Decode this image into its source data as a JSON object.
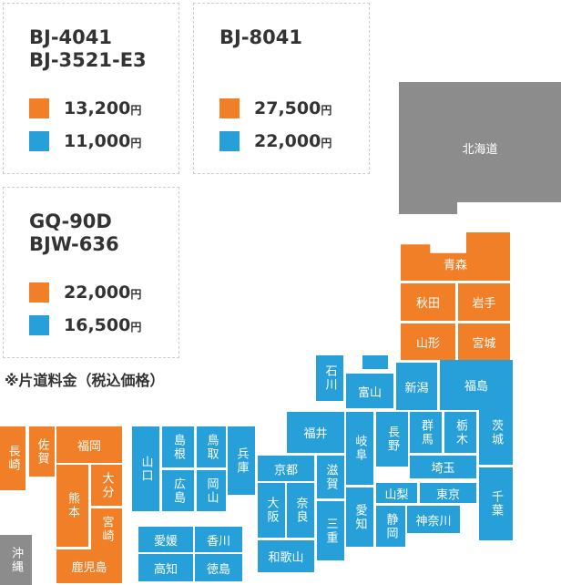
{
  "fare_boxes": [
    {
      "models": [
        "BJ-4041",
        "BJ-3521-E3"
      ],
      "rows": [
        {
          "color": "#f07f28",
          "amount": "13,200",
          "unit": "円"
        },
        {
          "color": "#27a0d9",
          "amount": "11,000",
          "unit": "円"
        }
      ]
    },
    {
      "models": [
        "BJ-8041"
      ],
      "rows": [
        {
          "color": "#f07f28",
          "amount": "27,500",
          "unit": "円"
        },
        {
          "color": "#27a0d9",
          "amount": "22,000",
          "unit": "円"
        }
      ]
    },
    {
      "models": [
        "GQ-90D",
        "BJW-636"
      ],
      "rows": [
        {
          "color": "#f07f28",
          "amount": "22,000",
          "unit": "円"
        },
        {
          "color": "#27a0d9",
          "amount": "16,500",
          "unit": "円"
        }
      ]
    }
  ],
  "note": "※片道料金（税込価格）",
  "prefectures": [
    {
      "label": "北海道",
      "color": "#8c8c8c"
    },
    {
      "label": "青森",
      "color": "#f07f28"
    },
    {
      "label": "秋田",
      "color": "#f07f28"
    },
    {
      "label": "岩手",
      "color": "#f07f28"
    },
    {
      "label": "山形",
      "color": "#f07f28"
    },
    {
      "label": "宮城",
      "color": "#f07f28"
    },
    {
      "label": "石川",
      "color": "#27a0d9"
    },
    {
      "label": "富山",
      "color": "#27a0d9"
    },
    {
      "label": "新潟",
      "color": "#27a0d9"
    },
    {
      "label": "福島",
      "color": "#27a0d9"
    },
    {
      "label": "福井",
      "color": "#27a0d9"
    },
    {
      "label": "岐阜",
      "color": "#27a0d9"
    },
    {
      "label": "長野",
      "color": "#27a0d9"
    },
    {
      "label": "群馬",
      "color": "#27a0d9"
    },
    {
      "label": "栃木",
      "color": "#27a0d9"
    },
    {
      "label": "茨城",
      "color": "#27a0d9"
    },
    {
      "label": "埼玉",
      "color": "#27a0d9"
    },
    {
      "label": "山梨",
      "color": "#27a0d9"
    },
    {
      "label": "東京",
      "color": "#27a0d9"
    },
    {
      "label": "千葉",
      "color": "#27a0d9"
    },
    {
      "label": "神奈川",
      "color": "#27a0d9"
    },
    {
      "label": "静岡",
      "color": "#27a0d9"
    },
    {
      "label": "愛知",
      "color": "#27a0d9"
    },
    {
      "label": "三重",
      "color": "#27a0d9"
    },
    {
      "label": "滋賀",
      "color": "#27a0d9"
    },
    {
      "label": "京都",
      "color": "#27a0d9"
    },
    {
      "label": "大阪",
      "color": "#27a0d9"
    },
    {
      "label": "奈良",
      "color": "#27a0d9"
    },
    {
      "label": "和歌山",
      "color": "#27a0d9"
    },
    {
      "label": "兵庫",
      "color": "#27a0d9"
    },
    {
      "label": "鳥取",
      "color": "#27a0d9"
    },
    {
      "label": "岡山",
      "color": "#27a0d9"
    },
    {
      "label": "島根",
      "color": "#27a0d9"
    },
    {
      "label": "広島",
      "color": "#27a0d9"
    },
    {
      "label": "山口",
      "color": "#27a0d9"
    },
    {
      "label": "愛媛",
      "color": "#27a0d9"
    },
    {
      "label": "香川",
      "color": "#27a0d9"
    },
    {
      "label": "高知",
      "color": "#27a0d9"
    },
    {
      "label": "徳島",
      "color": "#27a0d9"
    },
    {
      "label": "長崎",
      "color": "#f07f28"
    },
    {
      "label": "佐賀",
      "color": "#f07f28"
    },
    {
      "label": "福岡",
      "color": "#f07f28"
    },
    {
      "label": "熊本",
      "color": "#f07f28"
    },
    {
      "label": "大分",
      "color": "#f07f28"
    },
    {
      "label": "宮崎",
      "color": "#f07f28"
    },
    {
      "label": "鹿児島",
      "color": "#f07f28"
    },
    {
      "label": "沖縄",
      "color": "#8c8c8c"
    }
  ]
}
